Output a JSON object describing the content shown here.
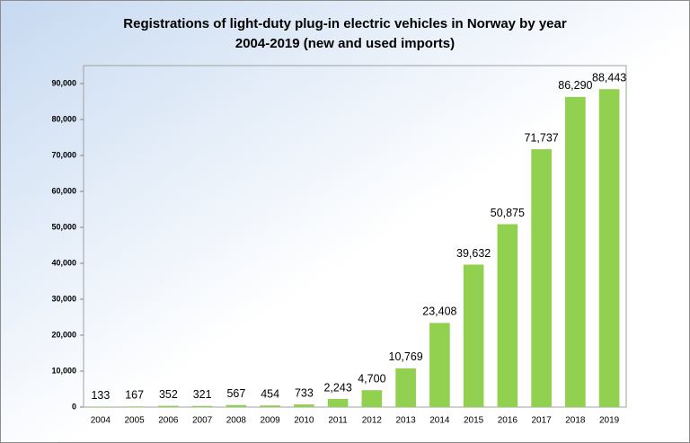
{
  "chart_data": {
    "type": "bar",
    "title": [
      "Registrations of light-duty plug-in electric vehicles in Norway by year",
      "2004-2019 (new and used imports)"
    ],
    "categories": [
      "2004",
      "2005",
      "2006",
      "2007",
      "2008",
      "2009",
      "2010",
      "2011",
      "2012",
      "2013",
      "2014",
      "2015",
      "2016",
      "2017",
      "2018",
      "2019"
    ],
    "values": [
      133,
      167,
      352,
      321,
      567,
      454,
      733,
      2243,
      4700,
      10769,
      23408,
      39632,
      50875,
      71737,
      86290,
      88443
    ],
    "value_labels": [
      "133",
      "167",
      "352",
      "321",
      "567",
      "454",
      "733",
      "2,243",
      "4,700",
      "10,769",
      "23,408",
      "39,632",
      "50,875",
      "71,737",
      "86,290",
      "88,443"
    ],
    "color": "#92d050",
    "ylim": [
      0,
      95000
    ],
    "yticks": [
      0,
      {
        "value": 10000,
        "label": "10,000"
      },
      {
        "value": 20000,
        "label": "20,000"
      },
      {
        "value": 30000,
        "label": "30,000"
      },
      {
        "value": 40000,
        "label": "40,000"
      },
      {
        "value": 50000,
        "label": "50,000"
      },
      {
        "value": 60000,
        "label": "60,000"
      },
      {
        "value": 70000,
        "label": "70,000"
      },
      {
        "value": 80000,
        "label": "80,000"
      },
      {
        "value": 90000,
        "label": "90,000"
      }
    ],
    "grid": false
  }
}
